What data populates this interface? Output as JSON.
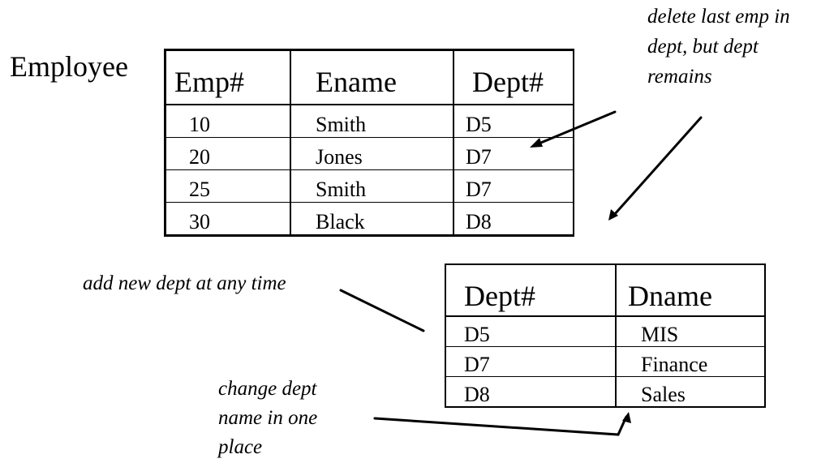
{
  "employee": {
    "title": "Employee",
    "headers": [
      "Emp#",
      "Ename",
      "Dept#"
    ],
    "rows": [
      [
        "10",
        "Smith",
        "D5"
      ],
      [
        "20",
        "Jones",
        "D7"
      ],
      [
        "25",
        "Smith",
        "D7"
      ],
      [
        "30",
        "Black",
        "D8"
      ]
    ]
  },
  "department": {
    "headers": [
      "Dept#",
      "Dname"
    ],
    "rows": [
      [
        "D5",
        "MIS"
      ],
      [
        "D7",
        "Finance"
      ],
      [
        "D8",
        "Sales"
      ]
    ]
  },
  "annotations": {
    "delete": [
      "delete last emp in",
      "dept, but dept",
      "remains"
    ],
    "add": [
      "add new dept at any time"
    ],
    "change": [
      "change dept",
      "name in one",
      "place"
    ]
  }
}
